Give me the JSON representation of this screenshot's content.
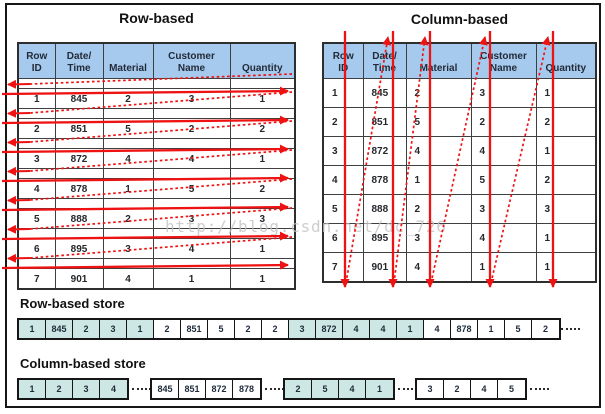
{
  "titles": {
    "left": "Row-based",
    "right": "Column-based"
  },
  "table": {
    "columns": [
      "Row\nID",
      "Date/\nTime",
      "Material",
      "Customer\nName",
      "Quantity"
    ],
    "rows": [
      [
        "1",
        "845",
        "2",
        "3",
        "1"
      ],
      [
        "2",
        "851",
        "5",
        "2",
        "2"
      ],
      [
        "3",
        "872",
        "4",
        "4",
        "1"
      ],
      [
        "4",
        "878",
        "1",
        "5",
        "2"
      ],
      [
        "5",
        "888",
        "2",
        "3",
        "3"
      ],
      [
        "6",
        "895",
        "3",
        "4",
        "1"
      ],
      [
        "7",
        "901",
        "4",
        "1",
        "1"
      ]
    ]
  },
  "row_store": {
    "label": "Row-based store",
    "cells": [
      "1",
      "845",
      "2",
      "3",
      "1",
      "2",
      "851",
      "5",
      "2",
      "2",
      "3",
      "872",
      "4",
      "4",
      "1",
      "4",
      "878",
      "1",
      "5",
      "2"
    ],
    "group_size": 5,
    "ellipsis": "·······"
  },
  "column_store": {
    "label": "Column-based store",
    "groups": [
      {
        "cells": [
          "1",
          "2",
          "3",
          "4"
        ],
        "shaded": true
      },
      {
        "cells": [
          "845",
          "851",
          "872",
          "878"
        ],
        "shaded": false
      },
      {
        "cells": [
          "2",
          "5",
          "4",
          "1"
        ],
        "shaded": true
      },
      {
        "cells": [
          "3",
          "2",
          "4",
          "5"
        ],
        "shaded": false
      }
    ],
    "ellipsis": "·······"
  },
  "watermark": "http://blog.csdn.net/dc_726",
  "colors": {
    "header_bg": "#a6c9ee",
    "shaded_cell": "#cde8e4",
    "arrow_red": "#ee1212",
    "grid_line": "#3f3f3f"
  }
}
